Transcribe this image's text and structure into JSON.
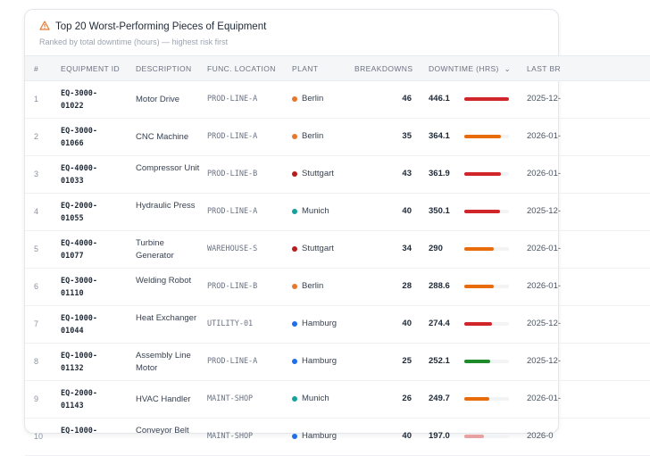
{
  "header": {
    "title": "Top 20 Worst-Performing Pieces of Equipment",
    "subtitle": "Ranked by total downtime (hours) — highest risk first",
    "icon": "warning-triangle-icon",
    "icon_color": "#e8772e"
  },
  "columns": {
    "num": "#",
    "id": "EQUIPMENT ID",
    "desc": "DESCRIPTION",
    "loc": "FUNC. LOCATION",
    "plant": "PLANT",
    "bd": "BREAKDOWNS",
    "dt": "DOWNTIME (HRS)",
    "last": "LAST BR",
    "sort_icon": "chevron-down-icon",
    "accent": "#2f80ed"
  },
  "plant_colors": {
    "Berlin": "#e8772e",
    "Stuttgart": "#b91c1c",
    "Munich": "#14a39a",
    "Hamburg": "#1f6feb"
  },
  "rows": [
    {
      "num": "1",
      "id": "EQ-3000-01022",
      "desc": "Motor Drive",
      "loc": "PROD-LINE-A",
      "plant": "Berlin",
      "bd": "46",
      "dt": "446.1",
      "fill": 100,
      "bar": "#d0262a",
      "last": "2025-12-"
    },
    {
      "num": "2",
      "id": "EQ-3000-01066",
      "desc": "CNC Machine",
      "loc": "PROD-LINE-A",
      "plant": "Berlin",
      "bd": "35",
      "dt": "364.1",
      "fill": 82,
      "bar": "#e96c0c",
      "last": "2026-01-"
    },
    {
      "num": "3",
      "id": "EQ-4000-01033",
      "desc": "Compressor Unit",
      "loc": "PROD-LINE-B",
      "plant": "Stuttgart",
      "bd": "43",
      "dt": "361.9",
      "fill": 82,
      "bar": "#d0262a",
      "last": "2026-01-"
    },
    {
      "num": "4",
      "id": "EQ-2000-01055",
      "desc": "Hydraulic Press",
      "loc": "PROD-LINE-A",
      "plant": "Munich",
      "bd": "40",
      "dt": "350.1",
      "fill": 79,
      "bar": "#d0262a",
      "last": "2025-12-"
    },
    {
      "num": "5",
      "id": "EQ-4000-01077",
      "desc": "Turbine Generator",
      "loc": "WAREHOUSE-S",
      "plant": "Stuttgart",
      "bd": "34",
      "dt": "290",
      "fill": 65,
      "bar": "#e96c0c",
      "last": "2026-01-"
    },
    {
      "num": "6",
      "id": "EQ-3000-01110",
      "desc": "Welding Robot",
      "loc": "PROD-LINE-B",
      "plant": "Berlin",
      "bd": "28",
      "dt": "288.6",
      "fill": 65,
      "bar": "#e96c0c",
      "last": "2026-01-"
    },
    {
      "num": "7",
      "id": "EQ-1000-01044",
      "desc": "Heat Exchanger",
      "loc": "UTILITY-01",
      "plant": "Hamburg",
      "bd": "40",
      "dt": "274.4",
      "fill": 62,
      "bar": "#d0262a",
      "last": "2025-12-"
    },
    {
      "num": "8",
      "id": "EQ-1000-01132",
      "desc": "Assembly Line Motor",
      "loc": "PROD-LINE-A",
      "plant": "Hamburg",
      "bd": "25",
      "dt": "252.1",
      "fill": 57,
      "bar": "#1e8a2a",
      "last": "2025-12-"
    },
    {
      "num": "9",
      "id": "EQ-2000-01143",
      "desc": "HVAC Handler",
      "loc": "MAINT-SHOP",
      "plant": "Munich",
      "bd": "26",
      "dt": "249.7",
      "fill": 56,
      "bar": "#e96c0c",
      "last": "2026-01-"
    },
    {
      "num": "10",
      "id": "EQ-1000-",
      "desc": "Conveyor Belt",
      "loc": "MAINT-SHOP",
      "plant": "Hamburg",
      "bd": "40",
      "dt": "197.0",
      "fill": 44,
      "bar": "#e8a0a0",
      "last": "2026-0"
    }
  ]
}
